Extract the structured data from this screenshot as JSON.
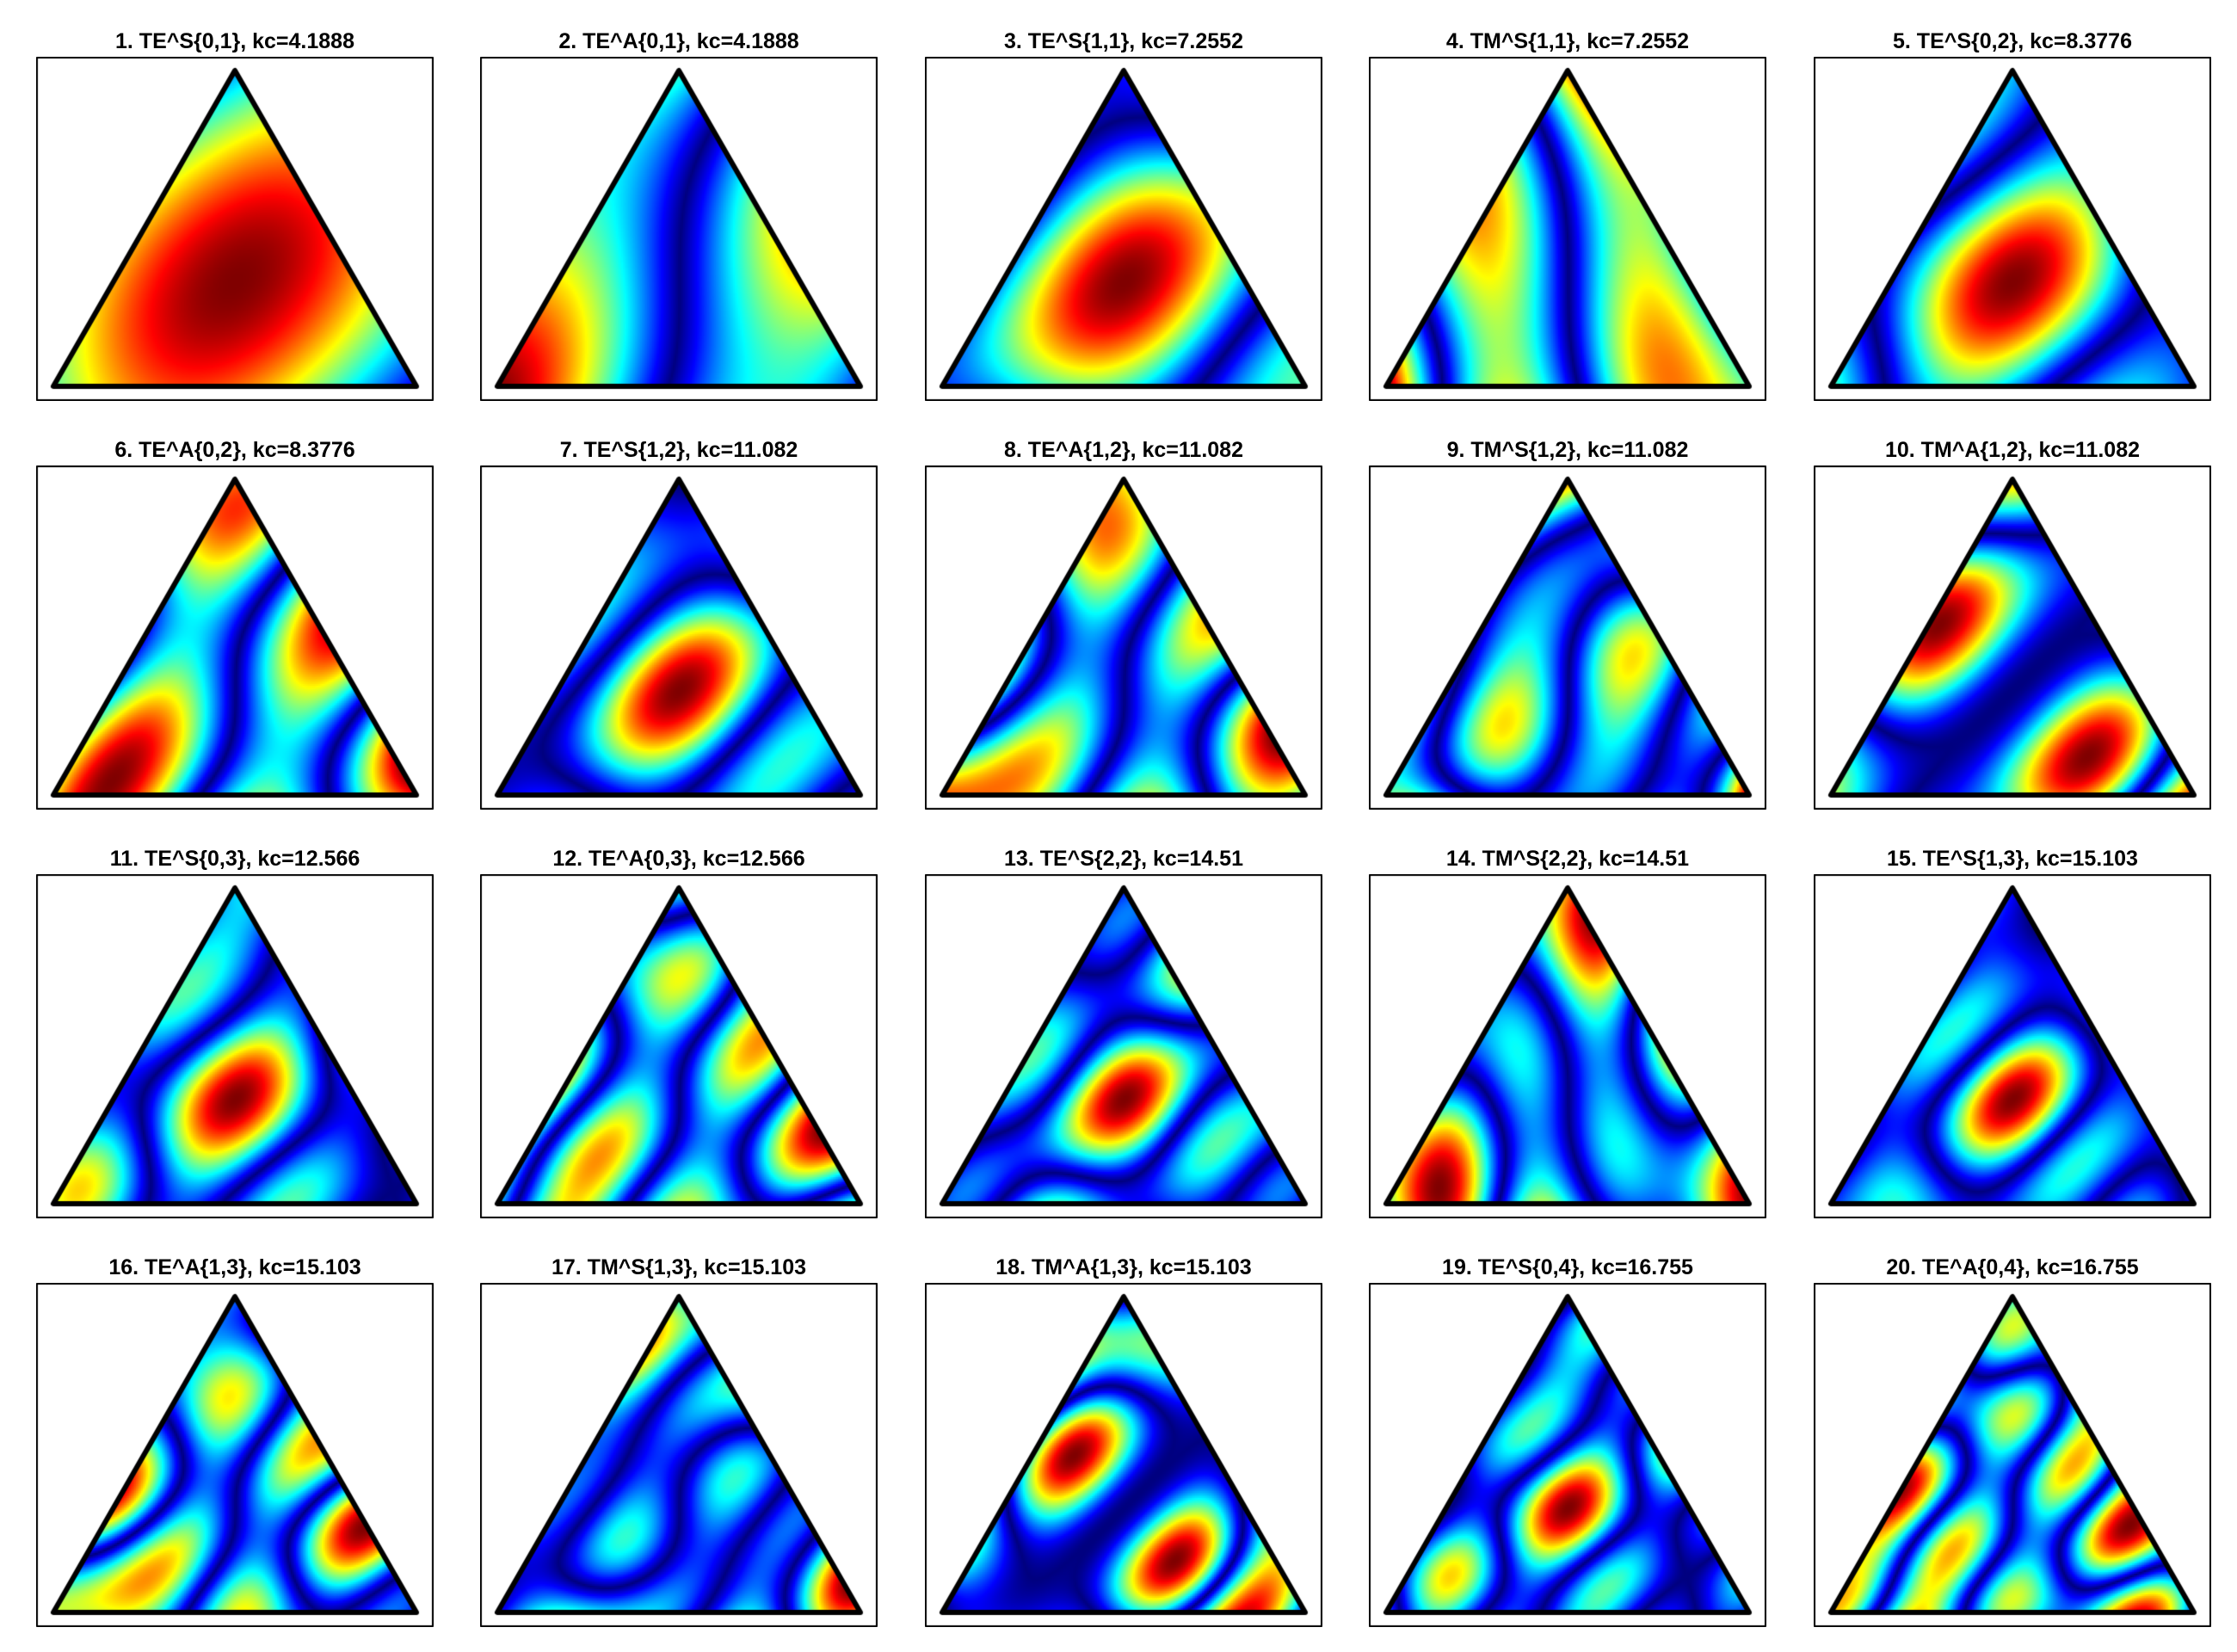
{
  "figure": {
    "colormap": "jet",
    "panels": [
      {
        "label": "1. TE^S{0,1}, kc=4.1888",
        "family": "TE",
        "parity": "S",
        "m": 0,
        "n": 1,
        "kc": 4.1888
      },
      {
        "label": "2. TE^A{0,1}, kc=4.1888",
        "family": "TE",
        "parity": "A",
        "m": 0,
        "n": 1,
        "kc": 4.1888
      },
      {
        "label": "3. TE^S{1,1}, kc=7.2552",
        "family": "TE",
        "parity": "S",
        "m": 1,
        "n": 1,
        "kc": 7.2552
      },
      {
        "label": "4. TM^S{1,1}, kc=7.2552",
        "family": "TM",
        "parity": "S",
        "m": 1,
        "n": 1,
        "kc": 7.2552
      },
      {
        "label": "5. TE^S{0,2}, kc=8.3776",
        "family": "TE",
        "parity": "S",
        "m": 0,
        "n": 2,
        "kc": 8.3776
      },
      {
        "label": "6. TE^A{0,2}, kc=8.3776",
        "family": "TE",
        "parity": "A",
        "m": 0,
        "n": 2,
        "kc": 8.3776
      },
      {
        "label": "7. TE^S{1,2}, kc=11.082",
        "family": "TE",
        "parity": "S",
        "m": 1,
        "n": 2,
        "kc": 11.082
      },
      {
        "label": "8. TE^A{1,2}, kc=11.082",
        "family": "TE",
        "parity": "A",
        "m": 1,
        "n": 2,
        "kc": 11.082
      },
      {
        "label": "9. TM^S{1,2}, kc=11.082",
        "family": "TM",
        "parity": "S",
        "m": 1,
        "n": 2,
        "kc": 11.082
      },
      {
        "label": "10. TM^A{1,2}, kc=11.082",
        "family": "TM",
        "parity": "A",
        "m": 1,
        "n": 2,
        "kc": 11.082
      },
      {
        "label": "11. TE^S{0,3}, kc=12.566",
        "family": "TE",
        "parity": "S",
        "m": 0,
        "n": 3,
        "kc": 12.566
      },
      {
        "label": "12. TE^A{0,3}, kc=12.566",
        "family": "TE",
        "parity": "A",
        "m": 0,
        "n": 3,
        "kc": 12.566
      },
      {
        "label": "13. TE^S{2,2}, kc=14.51",
        "family": "TE",
        "parity": "S",
        "m": 2,
        "n": 2,
        "kc": 14.51
      },
      {
        "label": "14. TM^S{2,2}, kc=14.51",
        "family": "TM",
        "parity": "S",
        "m": 2,
        "n": 2,
        "kc": 14.51
      },
      {
        "label": "15. TE^S{1,3}, kc=15.103",
        "family": "TE",
        "parity": "S",
        "m": 1,
        "n": 3,
        "kc": 15.103
      },
      {
        "label": "16. TE^A{1,3}, kc=15.103",
        "family": "TE",
        "parity": "A",
        "m": 1,
        "n": 3,
        "kc": 15.103
      },
      {
        "label": "17. TM^S{1,3}, kc=15.103",
        "family": "TM",
        "parity": "S",
        "m": 1,
        "n": 3,
        "kc": 15.103
      },
      {
        "label": "18. TM^A{1,3}, kc=15.103",
        "family": "TM",
        "parity": "A",
        "m": 1,
        "n": 3,
        "kc": 15.103
      },
      {
        "label": "19. TE^S{0,4}, kc=16.755",
        "family": "TE",
        "parity": "S",
        "m": 0,
        "n": 4,
        "kc": 16.755
      },
      {
        "label": "20. TE^A{0,4}, kc=16.755",
        "family": "TE",
        "parity": "A",
        "m": 0,
        "n": 4,
        "kc": 16.755
      }
    ]
  }
}
